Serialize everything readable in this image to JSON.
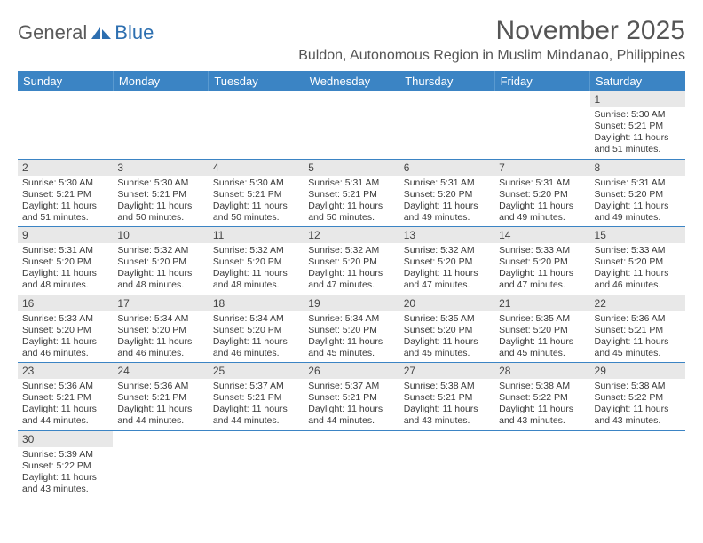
{
  "logo": {
    "text1": "General",
    "text2": "Blue"
  },
  "title": "November 2025",
  "subtitle": "Buldon, Autonomous Region in Muslim Mindanao, Philippines",
  "colors": {
    "header_bg": "#3b84c4",
    "header_text": "#ffffff",
    "daynum_bg": "#e8e8e8",
    "cell_border": "#3b84c4",
    "logo_gray": "#5a5a5a",
    "logo_blue": "#2d6fb0"
  },
  "weekdays": [
    "Sunday",
    "Monday",
    "Tuesday",
    "Wednesday",
    "Thursday",
    "Friday",
    "Saturday"
  ],
  "first_day_index": 6,
  "days": [
    {
      "n": 1,
      "sunrise": "5:30 AM",
      "sunset": "5:21 PM",
      "daylight": "11 hours and 51 minutes."
    },
    {
      "n": 2,
      "sunrise": "5:30 AM",
      "sunset": "5:21 PM",
      "daylight": "11 hours and 51 minutes."
    },
    {
      "n": 3,
      "sunrise": "5:30 AM",
      "sunset": "5:21 PM",
      "daylight": "11 hours and 50 minutes."
    },
    {
      "n": 4,
      "sunrise": "5:30 AM",
      "sunset": "5:21 PM",
      "daylight": "11 hours and 50 minutes."
    },
    {
      "n": 5,
      "sunrise": "5:31 AM",
      "sunset": "5:21 PM",
      "daylight": "11 hours and 50 minutes."
    },
    {
      "n": 6,
      "sunrise": "5:31 AM",
      "sunset": "5:20 PM",
      "daylight": "11 hours and 49 minutes."
    },
    {
      "n": 7,
      "sunrise": "5:31 AM",
      "sunset": "5:20 PM",
      "daylight": "11 hours and 49 minutes."
    },
    {
      "n": 8,
      "sunrise": "5:31 AM",
      "sunset": "5:20 PM",
      "daylight": "11 hours and 49 minutes."
    },
    {
      "n": 9,
      "sunrise": "5:31 AM",
      "sunset": "5:20 PM",
      "daylight": "11 hours and 48 minutes."
    },
    {
      "n": 10,
      "sunrise": "5:32 AM",
      "sunset": "5:20 PM",
      "daylight": "11 hours and 48 minutes."
    },
    {
      "n": 11,
      "sunrise": "5:32 AM",
      "sunset": "5:20 PM",
      "daylight": "11 hours and 48 minutes."
    },
    {
      "n": 12,
      "sunrise": "5:32 AM",
      "sunset": "5:20 PM",
      "daylight": "11 hours and 47 minutes."
    },
    {
      "n": 13,
      "sunrise": "5:32 AM",
      "sunset": "5:20 PM",
      "daylight": "11 hours and 47 minutes."
    },
    {
      "n": 14,
      "sunrise": "5:33 AM",
      "sunset": "5:20 PM",
      "daylight": "11 hours and 47 minutes."
    },
    {
      "n": 15,
      "sunrise": "5:33 AM",
      "sunset": "5:20 PM",
      "daylight": "11 hours and 46 minutes."
    },
    {
      "n": 16,
      "sunrise": "5:33 AM",
      "sunset": "5:20 PM",
      "daylight": "11 hours and 46 minutes."
    },
    {
      "n": 17,
      "sunrise": "5:34 AM",
      "sunset": "5:20 PM",
      "daylight": "11 hours and 46 minutes."
    },
    {
      "n": 18,
      "sunrise": "5:34 AM",
      "sunset": "5:20 PM",
      "daylight": "11 hours and 46 minutes."
    },
    {
      "n": 19,
      "sunrise": "5:34 AM",
      "sunset": "5:20 PM",
      "daylight": "11 hours and 45 minutes."
    },
    {
      "n": 20,
      "sunrise": "5:35 AM",
      "sunset": "5:20 PM",
      "daylight": "11 hours and 45 minutes."
    },
    {
      "n": 21,
      "sunrise": "5:35 AM",
      "sunset": "5:20 PM",
      "daylight": "11 hours and 45 minutes."
    },
    {
      "n": 22,
      "sunrise": "5:36 AM",
      "sunset": "5:21 PM",
      "daylight": "11 hours and 45 minutes."
    },
    {
      "n": 23,
      "sunrise": "5:36 AM",
      "sunset": "5:21 PM",
      "daylight": "11 hours and 44 minutes."
    },
    {
      "n": 24,
      "sunrise": "5:36 AM",
      "sunset": "5:21 PM",
      "daylight": "11 hours and 44 minutes."
    },
    {
      "n": 25,
      "sunrise": "5:37 AM",
      "sunset": "5:21 PM",
      "daylight": "11 hours and 44 minutes."
    },
    {
      "n": 26,
      "sunrise": "5:37 AM",
      "sunset": "5:21 PM",
      "daylight": "11 hours and 44 minutes."
    },
    {
      "n": 27,
      "sunrise": "5:38 AM",
      "sunset": "5:21 PM",
      "daylight": "11 hours and 43 minutes."
    },
    {
      "n": 28,
      "sunrise": "5:38 AM",
      "sunset": "5:22 PM",
      "daylight": "11 hours and 43 minutes."
    },
    {
      "n": 29,
      "sunrise": "5:38 AM",
      "sunset": "5:22 PM",
      "daylight": "11 hours and 43 minutes."
    },
    {
      "n": 30,
      "sunrise": "5:39 AM",
      "sunset": "5:22 PM",
      "daylight": "11 hours and 43 minutes."
    }
  ],
  "labels": {
    "sunrise": "Sunrise:",
    "sunset": "Sunset:",
    "daylight": "Daylight:"
  }
}
